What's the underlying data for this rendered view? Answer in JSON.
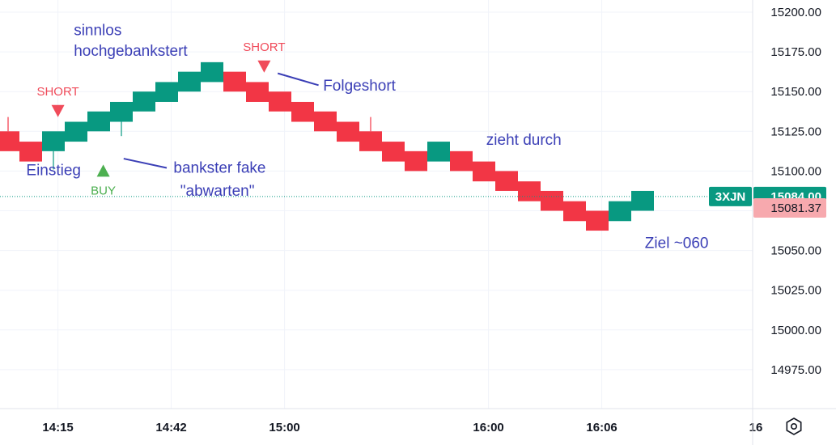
{
  "chart_data": {
    "type": "renko",
    "symbol": "3XJN",
    "last_price_label": "15084.00",
    "secondary_price_label": "15081.37",
    "last_price": 15084,
    "secondary_price": 15081.37,
    "box_size": 12.5,
    "ylim": [
      14950,
      15210
    ],
    "y_ticks": [
      "15200.00",
      "15175.00",
      "15150.00",
      "15125.00",
      "15100.00",
      "15075.00",
      "15050.00",
      "15025.00",
      "15000.00",
      "14975.00"
    ],
    "y_tick_values": [
      15200,
      15175,
      15150,
      15125,
      15100,
      15075,
      15050,
      15025,
      15000,
      14975
    ],
    "x_ticks": [
      {
        "label": "14:15",
        "bar": 2.2
      },
      {
        "label": "14:42",
        "bar": 7.2
      },
      {
        "label": "15:00",
        "bar": 12.2
      },
      {
        "label": "16:00",
        "bar": 21.2
      },
      {
        "label": "16:06",
        "bar": 26.2
      },
      {
        "label": "16",
        "bar": 33
      }
    ],
    "bricks": [
      {
        "dir": "down",
        "low": 15112.5,
        "high": 15125.0
      },
      {
        "dir": "down",
        "low": 15106.0,
        "high": 15118.5
      },
      {
        "dir": "up",
        "low": 15112.5,
        "high": 15125.0
      },
      {
        "dir": "up",
        "low": 15118.5,
        "high": 15131.0
      },
      {
        "dir": "up",
        "low": 15125.0,
        "high": 15137.5
      },
      {
        "dir": "up",
        "low": 15131.0,
        "high": 15143.5
      },
      {
        "dir": "up",
        "low": 15137.5,
        "high": 15150.0
      },
      {
        "dir": "up",
        "low": 15143.5,
        "high": 15156.0
      },
      {
        "dir": "up",
        "low": 15150.0,
        "high": 15162.5
      },
      {
        "dir": "up",
        "low": 15156.0,
        "high": 15168.5
      },
      {
        "dir": "down",
        "low": 15150.0,
        "high": 15162.5
      },
      {
        "dir": "down",
        "low": 15143.5,
        "high": 15156.0
      },
      {
        "dir": "down",
        "low": 15137.5,
        "high": 15150.0
      },
      {
        "dir": "down",
        "low": 15131.0,
        "high": 15143.5
      },
      {
        "dir": "down",
        "low": 15125.0,
        "high": 15137.5
      },
      {
        "dir": "down",
        "low": 15118.5,
        "high": 15131.0
      },
      {
        "dir": "down",
        "low": 15112.5,
        "high": 15125.0
      },
      {
        "dir": "down",
        "low": 15106.0,
        "high": 15118.5
      },
      {
        "dir": "down",
        "low": 15100.0,
        "high": 15112.5
      },
      {
        "dir": "up",
        "low": 15106.0,
        "high": 15118.5
      },
      {
        "dir": "down",
        "low": 15100.0,
        "high": 15112.5
      },
      {
        "dir": "down",
        "low": 15093.5,
        "high": 15106.0
      },
      {
        "dir": "down",
        "low": 15087.5,
        "high": 15100.0
      },
      {
        "dir": "down",
        "low": 15081.0,
        "high": 15093.5
      },
      {
        "dir": "down",
        "low": 15075.0,
        "high": 15087.5
      },
      {
        "dir": "down",
        "low": 15068.5,
        "high": 15081.0
      },
      {
        "dir": "down",
        "low": 15062.5,
        "high": 15075.0
      },
      {
        "dir": "up",
        "low": 15068.5,
        "high": 15081.0
      },
      {
        "dir": "up",
        "low": 15075.0,
        "high": 15087.5
      }
    ],
    "wicks": [
      {
        "bar": 0,
        "from": 15125.0,
        "to": 15134.0
      },
      {
        "bar": 2,
        "from": 15112.5,
        "to": 15101.0
      },
      {
        "bar": 5,
        "from": 15131.0,
        "to": 15122.0
      },
      {
        "bar": 16,
        "from": 15125.0,
        "to": 15134.0
      }
    ],
    "signals": [
      {
        "type": "SHORT",
        "bar": 2.2,
        "price": 15138,
        "text": "SHORT",
        "color": "#f04b5a"
      },
      {
        "type": "BUY",
        "bar": 4.2,
        "price": 15100,
        "text": "BUY",
        "color": "#4caf50"
      },
      {
        "type": "SHORT",
        "bar": 11.3,
        "price": 15166,
        "text": "SHORT",
        "color": "#f04b5a"
      }
    ],
    "annotations": [
      {
        "text": "sinnlos",
        "x_bar": 2.9,
        "price": 15185.5
      },
      {
        "text": "hochgebankstert",
        "x_bar": 2.9,
        "price": 15172.5
      },
      {
        "text": "Einstieg",
        "x_bar": 0.8,
        "price": 15097.5
      },
      {
        "text": "bankster fake",
        "x_bar": 7.3,
        "price": 15099.0
      },
      {
        "text": "\"abwarten\"",
        "x_bar": 7.6,
        "price": 15084.5
      },
      {
        "text": "Folgeshort",
        "x_bar": 13.9,
        "price": 15150.5
      },
      {
        "text": "zieht durch",
        "x_bar": 21.1,
        "price": 15116.5
      },
      {
        "text": "Ziel ~060",
        "x_bar": 28.1,
        "price": 15051.5
      }
    ],
    "arrows": [
      {
        "from_bar": 5.1,
        "from_price": 15107.8,
        "to_bar": 7.0,
        "to_price": 15102.0
      },
      {
        "from_bar": 11.9,
        "from_price": 15161.5,
        "to_bar": 13.7,
        "to_price": 15154.0
      }
    ],
    "colors": {
      "up": "#089981",
      "down": "#f23645",
      "grid": "#f0f3fa",
      "price_line": "#089981",
      "annotation": "#3b3fb6",
      "secondary_label": "#f7a9ae",
      "symbol_tag": "#089981"
    }
  },
  "icons": {
    "settings": "settings-hexagon-icon"
  }
}
